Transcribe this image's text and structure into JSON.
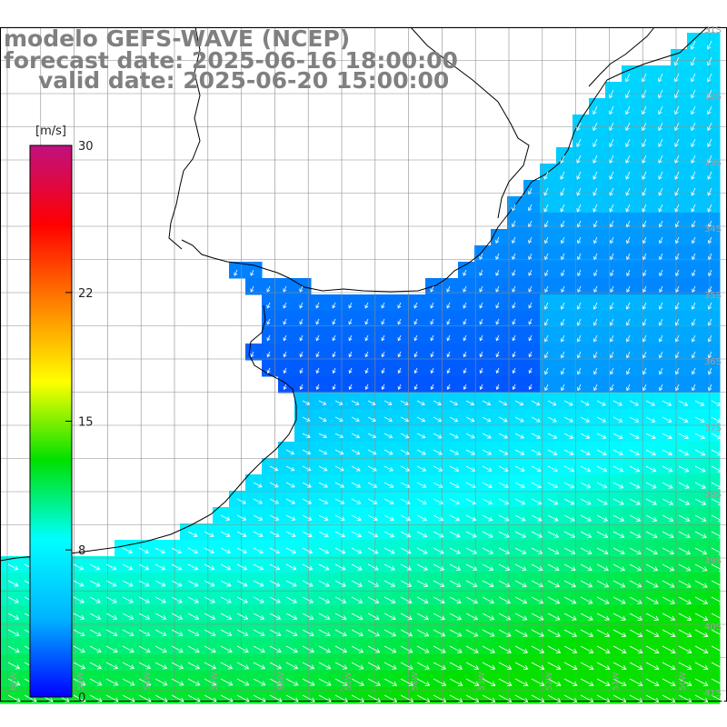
{
  "title": {
    "line1": "modelo GEFS-WAVE (NCEP)",
    "line2": "forecast date: 2025-06-16 18:00:00",
    "line3": "valid date: 2025-06-20 15:00:00"
  },
  "colorbar": {
    "unit": "[m/s]",
    "ticks": [
      "30",
      "22",
      "15",
      "8",
      "0"
    ],
    "tick_values": [
      30,
      22,
      15,
      8,
      0
    ],
    "colors": [
      "#0000ff",
      "#00b4ff",
      "#00ffff",
      "#00e000",
      "#ffff00",
      "#ff8000",
      "#ff0000",
      "#c01080"
    ]
  },
  "grid": {
    "lat_labels": [
      "31S",
      "32S",
      "33S",
      "34S",
      "35S",
      "36S",
      "37S",
      "38S",
      "39S",
      "40S",
      "41S"
    ],
    "lon_labels": [
      "60W",
      "59W",
      "58W",
      "57W",
      "56W",
      "55W",
      "54W",
      "53W",
      "52W",
      "51W",
      "50W"
    ]
  },
  "map": {
    "land_color": "#ffffff",
    "coast_color": "#000000",
    "grid_color": "#8c8c8c",
    "vector_color": "#ffffff"
  }
}
